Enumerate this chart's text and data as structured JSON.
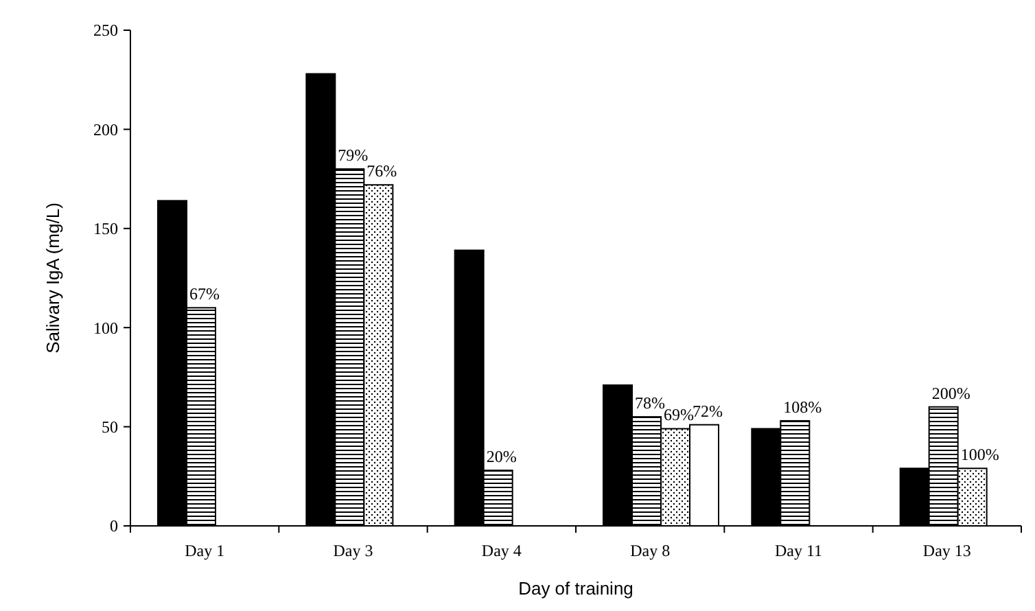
{
  "chart_data": {
    "type": "bar",
    "xlabel": "Day of training",
    "ylabel": "Salivary IgA (mg/L)",
    "categories": [
      "Day 1",
      "Day 3",
      "Day 4",
      "Day 8",
      "Day 11",
      "Day 13"
    ],
    "ylim": [
      0,
      250
    ],
    "yticks": [
      0,
      50,
      100,
      150,
      200,
      250
    ],
    "series": [
      {
        "color": "#000000",
        "values": [
          164,
          228,
          139,
          71,
          49,
          29
        ]
      },
      {
        "color": "#000000",
        "values": [
          110,
          180,
          28,
          55,
          53,
          60
        ]
      },
      {
        "color": "#000000",
        "values": [
          null,
          172,
          null,
          49,
          null,
          29
        ]
      },
      {
        "color": "#ffffff",
        "values": [
          null,
          null,
          null,
          51,
          null,
          null
        ]
      }
    ],
    "annotations": [
      {
        "text": "67%",
        "x": "Day 1",
        "y": 110
      },
      {
        "text": "79%",
        "x": "Day 3",
        "y": 180
      },
      "76%",
      {
        "text": "20%",
        "x": "Day 4",
        "y": 28
      },
      {
        "text": "78%",
        "x": "Day 8",
        "y": 55
      },
      "69%",
      "72%",
      {
        "text": "108%",
        "x": "Day 11",
        "y": 53
      },
      {
        "text": "200%",
        "x": "Day 13",
        "y": 60
      },
      "100%"
    ]
  }
}
